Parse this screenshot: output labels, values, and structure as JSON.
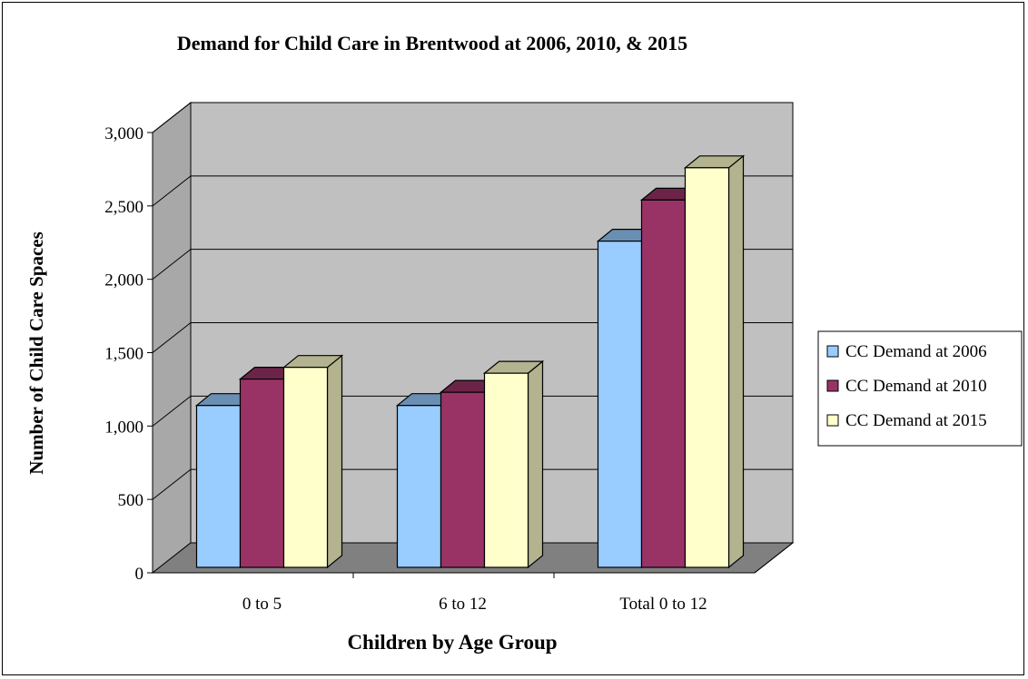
{
  "chart_data": {
    "type": "bar",
    "title": "Demand for Child Care in Brentwood at 2006, 2010, & 2015",
    "xlabel": "Children by Age Group",
    "ylabel": "Number of Child Care Spaces",
    "categories": [
      "0 to 5",
      "6 to 12",
      "Total  0 to 12"
    ],
    "ylim": [
      0,
      3000
    ],
    "yticks": [
      "0",
      "500",
      "1,000",
      "1,500",
      "2,000",
      "2,500",
      "3,000"
    ],
    "grid": true,
    "legend": "right",
    "series": [
      {
        "name": "CC Demand at 2006",
        "values": [
          1140,
          1140,
          2260
        ],
        "color": "#99ccff"
      },
      {
        "name": "CC Demand at 2010",
        "values": [
          1320,
          1230,
          2540
        ],
        "color": "#993366"
      },
      {
        "name": "CC Demand at 2015",
        "values": [
          1400,
          1360,
          2760
        ],
        "color": "#ffffcc"
      }
    ],
    "colors": {
      "wall": "#c0c0c0",
      "floor": "#808080",
      "side_2006": "#6b8fb3",
      "side_2010": "#6b2447",
      "side_2015": "#b3b38f",
      "sidewall": "#a8a8a8"
    }
  }
}
